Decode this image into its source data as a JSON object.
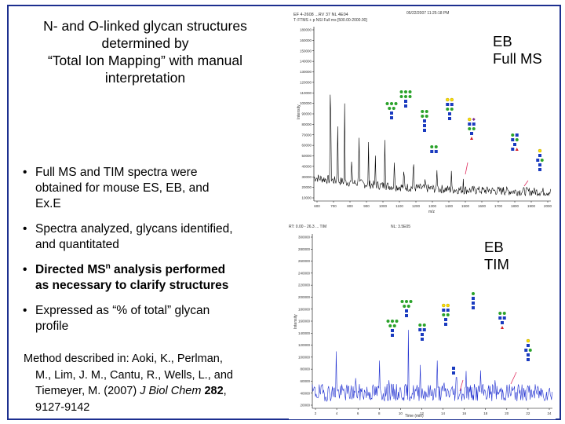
{
  "slide": {
    "title_lines": [
      "N- and O-linked glycan structures",
      "determined by",
      "“Total Ion Mapping” with manual",
      "interpretation"
    ],
    "bullets": [
      {
        "lines": [
          "Full MS and TIM spectra were",
          "obtained for mouse ES, EB, and",
          "Ex.E"
        ]
      },
      {
        "lines": [
          "Spectra analyzed, glycans identified,",
          "and quantitated"
        ]
      },
      {
        "lead": "Directed MS",
        "sup": "n",
        "rest": " analysis performed",
        "line2": "as necessary to clarify structures"
      },
      {
        "lines": [
          "Expressed as “% of total” glycan",
          "profile"
        ]
      }
    ],
    "citation": {
      "line1": "Method described in: Aoki, K., Perlman,",
      "line2": "M., Lim, J. M., Cantu, R., Wells, L., and",
      "line3_pre": "Tiemeyer, M. (2007) ",
      "journal": "J Biol Chem",
      "volume": "282",
      "line3_post": ",",
      "line4": "9127-9142"
    }
  },
  "panels": {
    "full_ms": {
      "label_lines": [
        "EB",
        "Full MS"
      ],
      "header_left": "EF 4-2608 ...RV 37 NL 4E04",
      "header_right": "05/22/2007 11:25:18 PM",
      "subheader": "T: FTMS + p NSI Full ms [500.00-2000.00]",
      "ylabel": "Intensity",
      "xlabel": "m/z",
      "y_ticks": [
        "180000",
        "160000",
        "150000",
        "140000",
        "130000",
        "120000",
        "110000",
        "100000",
        "90000",
        "80000",
        "70000",
        "60000",
        "50000",
        "40000",
        "30000",
        "20000",
        "10000"
      ],
      "x_ticks": [
        "600",
        "700",
        "800",
        "900",
        "1000",
        "1100",
        "1200",
        "1300",
        "1400",
        "1500",
        "1600",
        "1700",
        "1800",
        "1900",
        "2000"
      ]
    },
    "tim": {
      "label_lines": [
        "EB",
        "TIM"
      ],
      "header_left": "RT: 0.00 - 26.3 ... TIM",
      "header_right": "NL: 3.5E05",
      "ylabel": "Intensity",
      "xlabel": "Time (min)",
      "y_ticks": [
        "300000",
        "280000",
        "260000",
        "240000",
        "220000",
        "200000",
        "180000",
        "160000",
        "140000",
        "120000",
        "100000",
        "80000",
        "60000",
        "40000",
        "20000"
      ],
      "x_ticks": [
        "2",
        "4",
        "6",
        "8",
        "10",
        "12",
        "14",
        "16",
        "18",
        "20",
        "22",
        "24"
      ]
    }
  },
  "colors": {
    "frame": "#1c2f8f",
    "trace_ms": "#000000",
    "trace_tim": "#1f2fd0",
    "hexnac": "#1a3bbf",
    "hex": "#2aa22a",
    "gal": "#ffe000",
    "fuc": "#d4202a",
    "neuac": "#7a2a8a",
    "arrow": "#e03060"
  }
}
